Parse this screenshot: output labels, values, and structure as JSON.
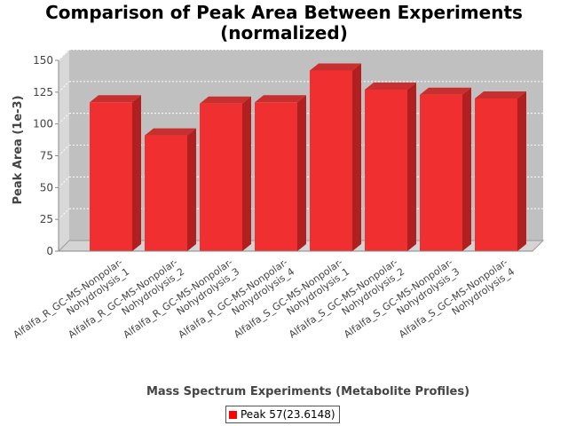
{
  "chart_data": {
    "type": "bar",
    "title": "Comparison of Peak Area Between Experiments (normalized)",
    "xlabel": "Mass Spectrum Experiments (Metabolite Profiles)",
    "ylabel": "Peak Area (1e-3)",
    "ylim": [
      0,
      150
    ],
    "yticks": [
      0,
      25,
      50,
      75,
      100,
      125,
      150
    ],
    "grid": true,
    "legend_position": "bottom",
    "categories": [
      [
        "Alfalfa_R_GC-MS-Nonpolar-",
        "Nohydrolysis_1"
      ],
      [
        "Alfalfa_R_GC-MS-Nonpolar-",
        "Nohydrolysis_2"
      ],
      [
        "Alfalfa_R_GC-MS-Nonpolar-",
        "Nohydrolysis_3"
      ],
      [
        "Alfalfa_R_GC-MS-Nonpolar-",
        "Nohydrolysis_4"
      ],
      [
        "Alfalfa_S_GC-MS-Nonpolar-",
        "Nohydrolysis_1"
      ],
      [
        "Alfalfa_S_GC-MS-Nonpolar-",
        "Nohydrolysis_2"
      ],
      [
        "Alfalfa_S_GC-MS-Nonpolar-",
        "Nohydrolysis_3"
      ],
      [
        "Alfalfa_S_GC-MS-Nonpolar-",
        "Nohydrolysis_4"
      ]
    ],
    "series": [
      {
        "name": "Peak 57(23.6148)",
        "color": "#ff0000",
        "values": [
          117,
          91,
          116,
          117,
          142,
          127,
          123,
          120
        ]
      }
    ]
  }
}
